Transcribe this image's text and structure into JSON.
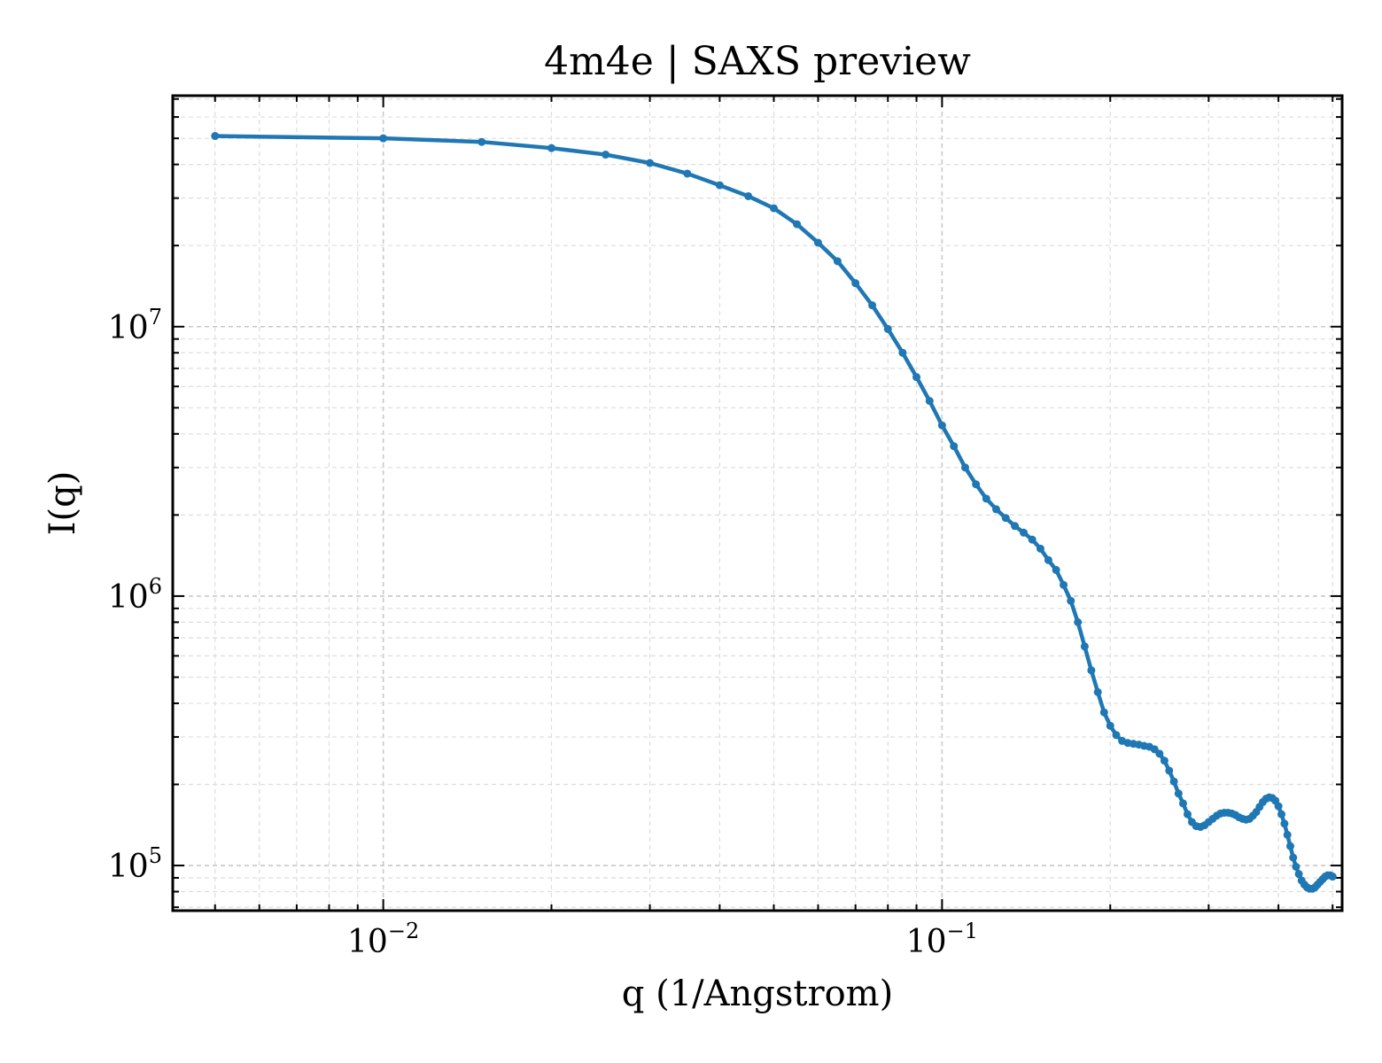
{
  "chart_data": {
    "type": "line",
    "title": "4m4e | SAXS preview",
    "xlabel": "q (1/Angstrom)",
    "ylabel": "I(q)",
    "xscale": "log",
    "yscale": "log",
    "xlim": [
      0.0042,
      0.52
    ],
    "ylim": [
      68000,
      72000000
    ],
    "grid": true,
    "line_color": "#1f77b4",
    "x_ticks": [
      {
        "value": 0.01,
        "base": "10",
        "exp": "−2"
      },
      {
        "value": 0.1,
        "base": "10",
        "exp": "−1"
      }
    ],
    "y_ticks": [
      {
        "value": 100000,
        "base": "10",
        "exp": "5"
      },
      {
        "value": 1000000,
        "base": "10",
        "exp": "6"
      },
      {
        "value": 10000000,
        "base": "10",
        "exp": "7"
      }
    ],
    "series": [
      {
        "x": [
          0.005,
          0.01,
          0.015,
          0.02,
          0.025,
          0.03,
          0.035,
          0.04,
          0.045,
          0.05,
          0.055,
          0.06,
          0.065,
          0.07,
          0.075,
          0.08,
          0.085,
          0.09,
          0.095,
          0.1,
          0.105,
          0.11,
          0.115,
          0.12,
          0.125,
          0.13,
          0.135,
          0.14,
          0.145,
          0.15,
          0.155,
          0.16,
          0.165,
          0.17,
          0.175,
          0.18,
          0.185,
          0.19,
          0.195,
          0.2,
          0.205,
          0.21,
          0.215,
          0.22,
          0.225,
          0.23,
          0.235,
          0.24,
          0.245,
          0.25,
          0.255,
          0.26,
          0.265,
          0.27,
          0.275,
          0.28,
          0.285,
          0.29,
          0.295,
          0.3,
          0.305,
          0.31,
          0.315,
          0.32,
          0.325,
          0.33,
          0.335,
          0.34,
          0.345,
          0.35,
          0.355,
          0.36,
          0.365,
          0.37,
          0.375,
          0.38,
          0.385,
          0.39,
          0.395,
          0.4,
          0.405,
          0.41,
          0.415,
          0.42,
          0.425,
          0.43,
          0.435,
          0.44,
          0.445,
          0.45,
          0.455,
          0.46,
          0.465,
          0.47,
          0.475,
          0.48,
          0.485,
          0.49,
          0.495,
          0.5
        ],
        "y": [
          51000000,
          50000000,
          48500000,
          46000000,
          43500000,
          40500000,
          37000000,
          33500000,
          30500000,
          27500000,
          24000000,
          20500000,
          17500000,
          14500000,
          12000000,
          9800000,
          8000000,
          6500000,
          5300000,
          4300000,
          3600000,
          3000000,
          2600000,
          2300000,
          2100000,
          1950000,
          1820000,
          1720000,
          1620000,
          1500000,
          1360000,
          1250000,
          1100000,
          960000,
          800000,
          650000,
          530000,
          440000,
          370000,
          330000,
          305000,
          290000,
          285000,
          283000,
          281000,
          278000,
          276000,
          270000,
          260000,
          245000,
          225000,
          205000,
          185000,
          170000,
          155000,
          145000,
          140000,
          139000,
          141000,
          145000,
          149000,
          153000,
          156000,
          157000,
          157000,
          156000,
          154000,
          151000,
          149000,
          148000,
          149000,
          153000,
          158000,
          165000,
          172000,
          177000,
          179000,
          178000,
          174000,
          166000,
          155000,
          143000,
          130000,
          118000,
          107000,
          99000,
          93000,
          88000,
          85000,
          83000,
          82000,
          82000,
          83000,
          85000,
          87000,
          89000,
          91000,
          92000,
          92000,
          91000
        ]
      }
    ]
  }
}
